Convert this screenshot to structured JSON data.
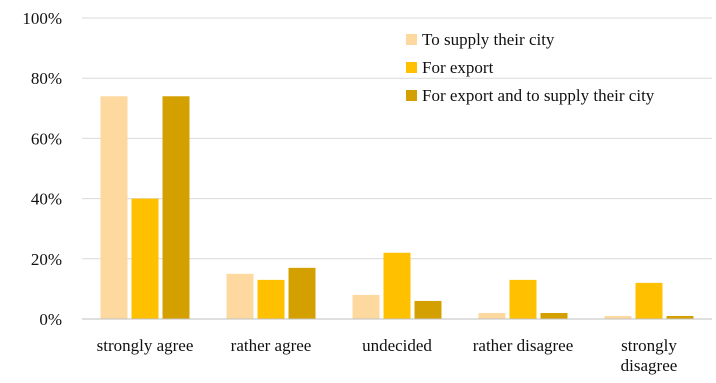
{
  "chart_data": {
    "type": "bar",
    "title": "",
    "xlabel": "",
    "ylabel": "",
    "ylim": [
      0,
      100
    ],
    "yticks": [
      "0%",
      "20%",
      "40%",
      "60%",
      "80%",
      "100%"
    ],
    "ytick_values": [
      0,
      20,
      40,
      60,
      80,
      100
    ],
    "grid": true,
    "legend_position": "top-right",
    "categories": [
      [
        "strongly agree"
      ],
      [
        "rather agree"
      ],
      [
        "undecided"
      ],
      [
        "rather disagree"
      ],
      [
        "strongly",
        "disagree"
      ]
    ],
    "series": [
      {
        "name": "To supply their city",
        "color": "#FDD9A0",
        "values": [
          74,
          15,
          8,
          2,
          1
        ]
      },
      {
        "name": "For export",
        "color": "#FFC000",
        "values": [
          40,
          13,
          22,
          13,
          12
        ]
      },
      {
        "name": "For export and to supply their city",
        "color": "#D4A000",
        "values": [
          74,
          17,
          6,
          2,
          1
        ]
      }
    ]
  }
}
